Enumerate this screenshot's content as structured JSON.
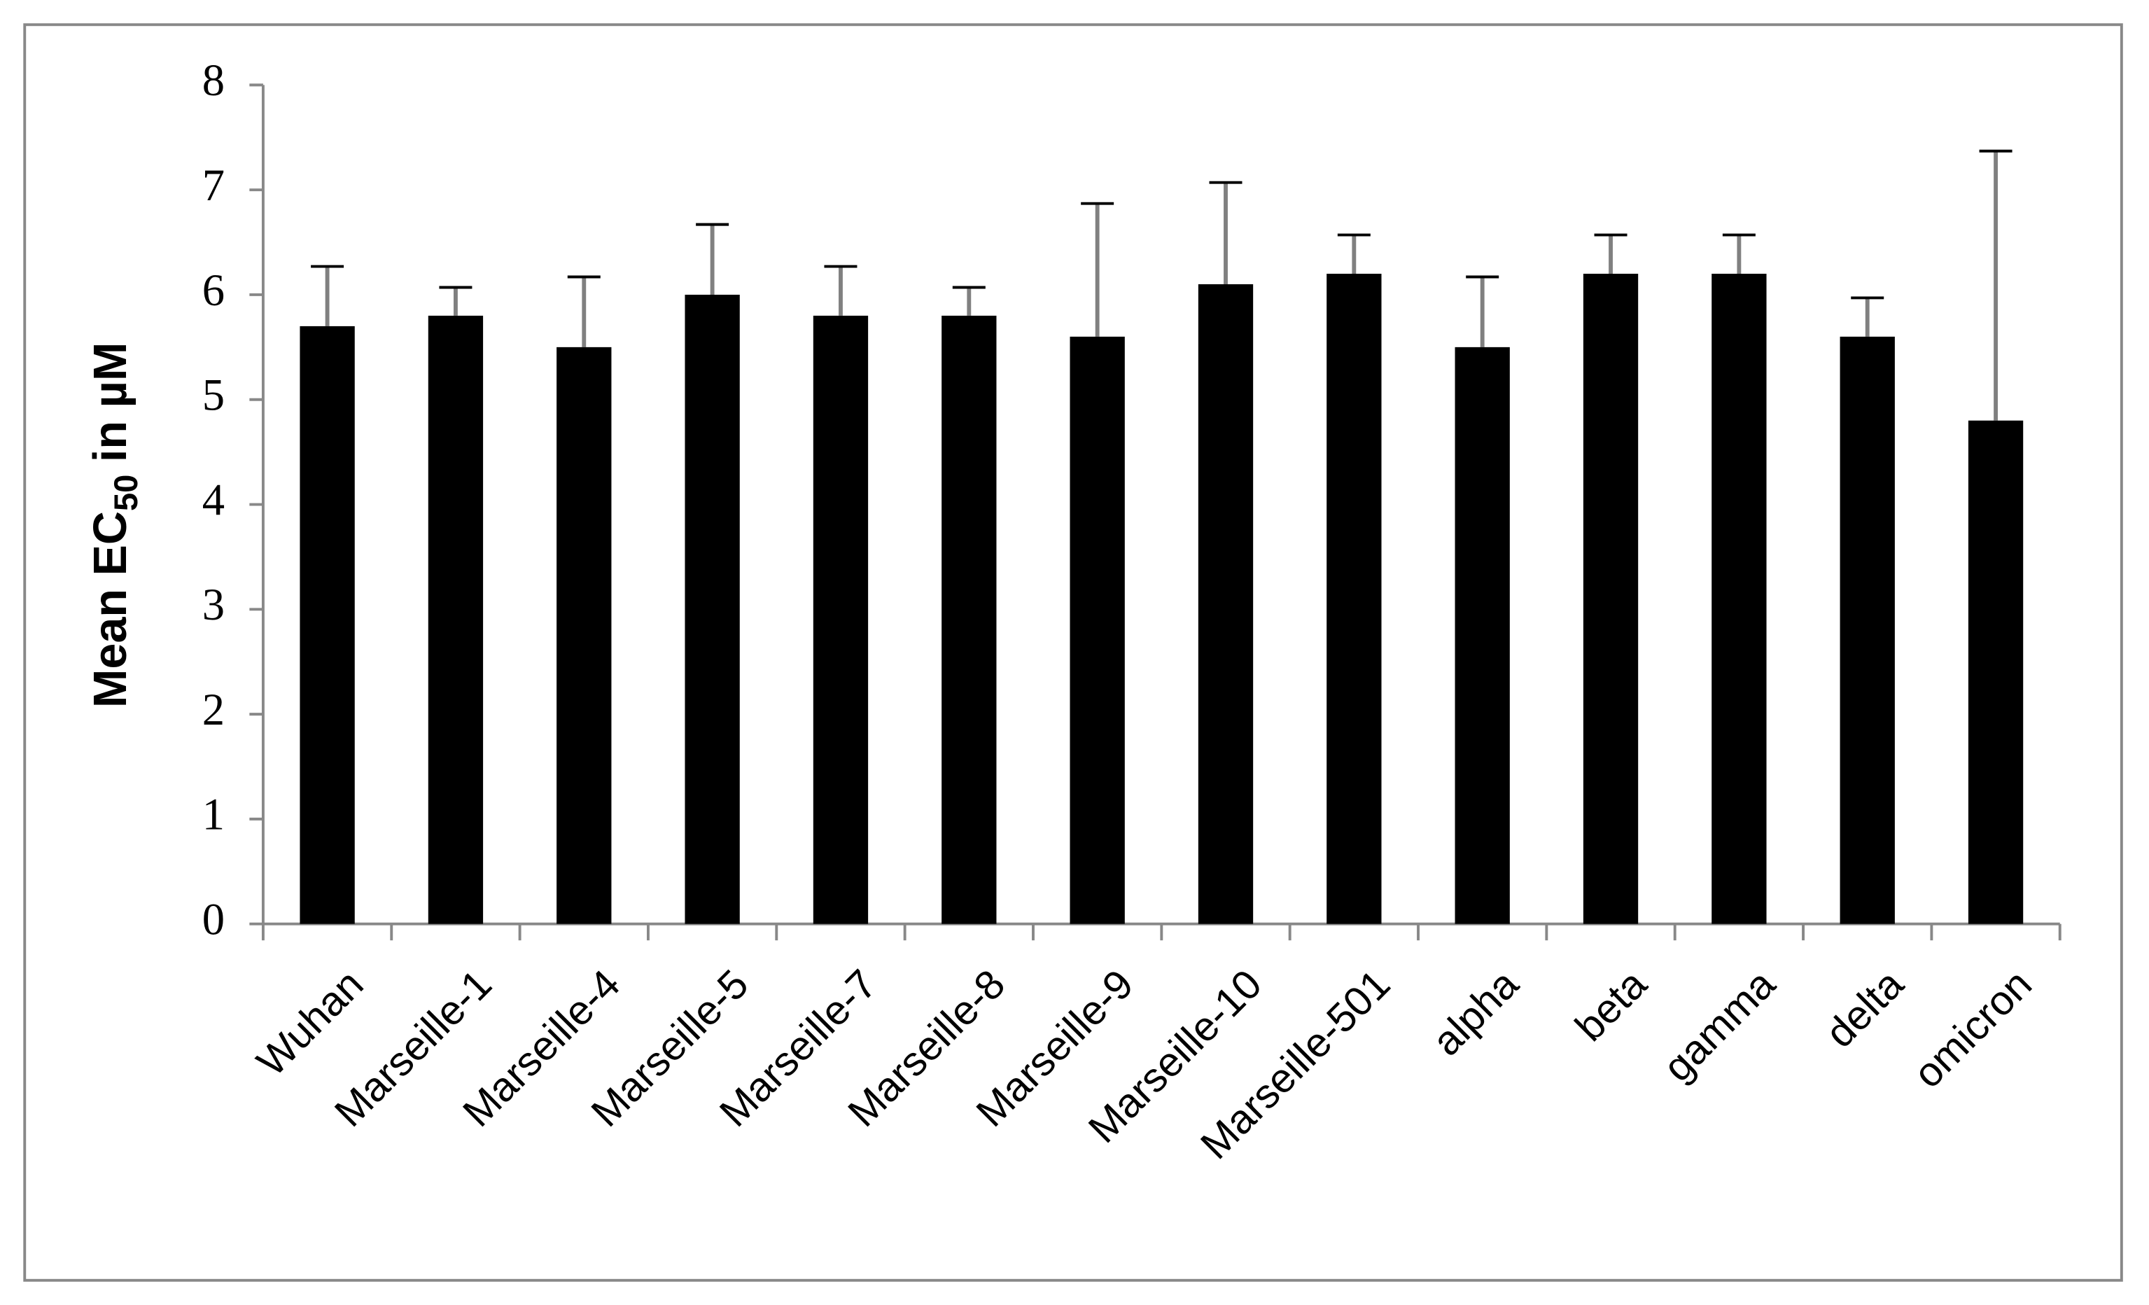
{
  "chart_data": {
    "type": "bar",
    "y_label": "Mean EC",
    "y_label_subscript": "50",
    "y_label_suffix": "in µM",
    "categories": [
      "Wuhan",
      "Marseille-1",
      "Marseille-4",
      "Marseille-5",
      "Marseille-7",
      "Marseille-8",
      "Marseille-9",
      "Marseille-10",
      "Marseille-501",
      "alpha",
      "beta",
      "gamma",
      "delta",
      "omicron"
    ],
    "values": [
      5.7,
      5.8,
      5.5,
      6.0,
      5.8,
      5.8,
      5.6,
      6.1,
      6.2,
      5.5,
      6.2,
      6.2,
      5.6,
      4.8
    ],
    "errors": [
      0.57,
      0.27,
      0.67,
      0.67,
      0.47,
      0.27,
      1.27,
      0.97,
      0.37,
      0.67,
      0.37,
      0.37,
      0.37,
      2.57
    ],
    "color": "#000000",
    "error_color": "#808080",
    "ylim": [
      0,
      8
    ],
    "yticks": [
      0,
      1,
      2,
      3,
      4,
      5,
      6,
      7,
      8
    ],
    "grid": false
  }
}
